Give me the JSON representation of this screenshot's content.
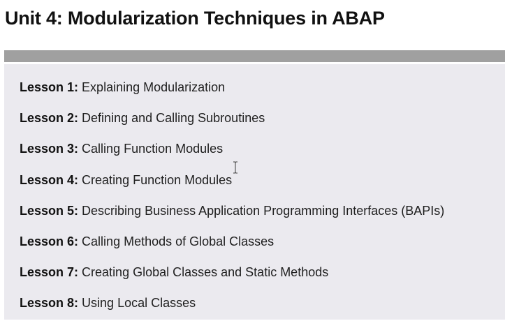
{
  "unit": {
    "title": "Unit 4: Modularization Techniques in ABAP"
  },
  "lessons": [
    {
      "label": "Lesson 1:",
      "title": "Explaining Modularization"
    },
    {
      "label": "Lesson 2:",
      "title": "Defining and Calling Subroutines"
    },
    {
      "label": "Lesson 3:",
      "title": "Calling Function Modules"
    },
    {
      "label": "Lesson 4:",
      "title": "Creating Function Modules"
    },
    {
      "label": "Lesson 5:",
      "title": "Describing Business Application Programming Interfaces (BAPIs)"
    },
    {
      "label": "Lesson 6:",
      "title": "Calling Methods of Global Classes"
    },
    {
      "label": "Lesson 7:",
      "title": "Creating Global Classes and Static Methods"
    },
    {
      "label": "Lesson 8:",
      "title": "Using Local Classes"
    }
  ],
  "icons": {
    "cursor": "text-cursor-icon"
  },
  "colors": {
    "title_bar": "#a0a0a0",
    "panel_background": "#ebeaef",
    "text": "#1a1a1a"
  }
}
